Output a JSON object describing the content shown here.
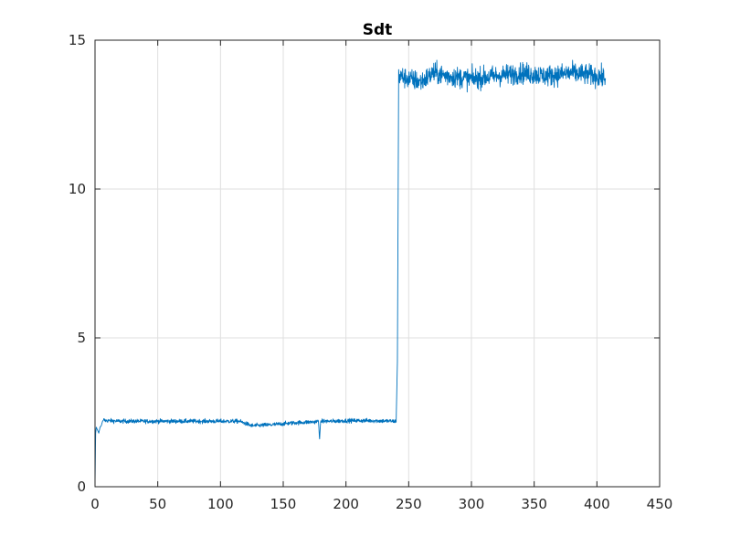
{
  "chart_data": {
    "type": "line",
    "title": "Sdt",
    "xlabel": "",
    "ylabel": "",
    "xlim": [
      0,
      450
    ],
    "ylim": [
      0,
      15
    ],
    "x_ticks": [
      0,
      50,
      100,
      150,
      200,
      250,
      300,
      350,
      400,
      450
    ],
    "y_ticks": [
      0,
      5,
      10,
      15
    ],
    "x_tick_labels": [
      "0",
      "50",
      "100",
      "150",
      "200",
      "250",
      "300",
      "350",
      "400",
      "450"
    ],
    "y_tick_labels": [
      "0",
      "5",
      "10",
      "15"
    ],
    "grid": true,
    "line_color": "#0072BD",
    "series": [
      {
        "x": [
          0,
          0.5,
          1,
          2,
          3,
          4,
          5,
          6,
          7,
          8,
          10,
          20,
          40,
          60,
          80,
          100,
          115,
          125,
          140,
          160,
          175,
          178,
          179,
          180,
          181,
          190,
          200,
          220,
          239,
          240,
          241,
          242,
          250,
          260,
          270,
          280,
          300,
          320,
          340,
          360,
          380,
          400,
          407
        ],
        "y": [
          0.1,
          1.8,
          2.0,
          1.9,
          1.8,
          2.0,
          2.05,
          2.2,
          2.25,
          2.22,
          2.22,
          2.2,
          2.2,
          2.2,
          2.2,
          2.2,
          2.2,
          2.05,
          2.08,
          2.15,
          2.18,
          2.2,
          1.65,
          2.2,
          2.2,
          2.2,
          2.22,
          2.22,
          2.2,
          2.2,
          4.2,
          13.8,
          13.7,
          13.6,
          13.9,
          13.8,
          13.7,
          13.8,
          13.9,
          13.8,
          13.9,
          13.8,
          13.7
        ],
        "noise": [
          {
            "x_from": 7,
            "x_to": 240,
            "amplitude": 0.1
          },
          {
            "x_from": 242,
            "x_to": 407,
            "amplitude": 0.5
          }
        ]
      }
    ]
  }
}
